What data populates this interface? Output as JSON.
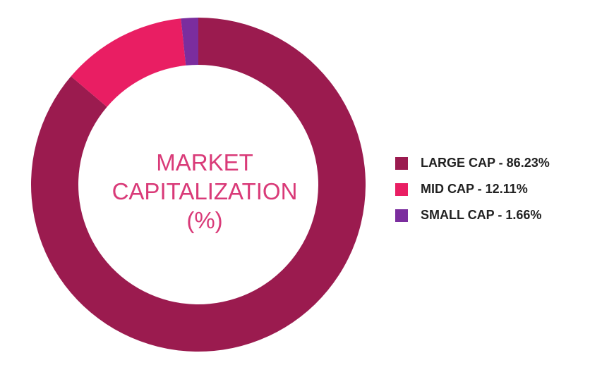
{
  "chart_data": {
    "type": "pie",
    "title": "MARKET CAPITALIZATION (%)",
    "title_lines": [
      "MARKET",
      "CAPITALIZATION",
      "(%)"
    ],
    "donut": true,
    "legend_position": "right",
    "slices": [
      {
        "name": "LARGE CAP",
        "value": 86.23,
        "label": "LARGE CAP - 86.23%",
        "color": "#9b1b4f"
      },
      {
        "name": "MID CAP",
        "value": 12.11,
        "label": "MID CAP - 12.11%",
        "color": "#e91e63"
      },
      {
        "name": "SMALL CAP",
        "value": 1.66,
        "label": "SMALL CAP - 1.66%",
        "color": "#7b2d9e"
      }
    ]
  }
}
